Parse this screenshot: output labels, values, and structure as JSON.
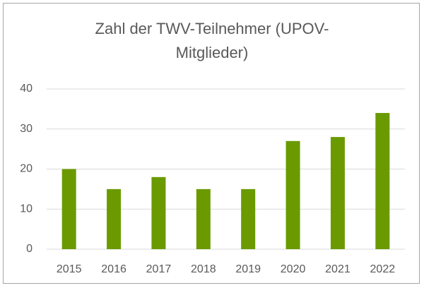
{
  "chart_data": {
    "type": "bar",
    "title": "Zahl der TWV-Teilnehmer (UPOV-Mitglieder)",
    "categories": [
      "2015",
      "2016",
      "2017",
      "2018",
      "2019",
      "2020",
      "2021",
      "2022"
    ],
    "values": [
      20,
      15,
      18,
      15,
      15,
      27,
      28,
      34
    ],
    "color": "#6a9a00",
    "ylim": [
      0,
      40
    ],
    "yticks": [
      0,
      10,
      20,
      30,
      40
    ],
    "grid": true
  }
}
